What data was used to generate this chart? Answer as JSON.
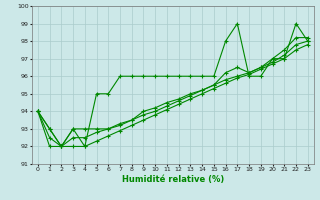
{
  "xlabel": "Humidité relative (%)",
  "background_color": "#cce8e8",
  "grid_color": "#aacccc",
  "line_color": "#008800",
  "xlim": [
    -0.5,
    23.5
  ],
  "ylim": [
    91,
    100
  ],
  "xticks": [
    0,
    1,
    2,
    3,
    4,
    5,
    6,
    7,
    8,
    9,
    10,
    11,
    12,
    13,
    14,
    15,
    16,
    17,
    18,
    19,
    20,
    21,
    22,
    23
  ],
  "yticks": [
    91,
    92,
    93,
    94,
    95,
    96,
    97,
    98,
    99,
    100
  ],
  "series1": [
    94,
    93,
    92,
    93,
    92,
    95,
    95,
    96,
    96,
    96,
    96,
    96,
    96,
    96,
    96,
    96,
    98,
    99,
    96,
    96,
    97,
    97,
    99,
    98
  ],
  "series2": [
    94,
    93,
    92,
    93,
    93,
    93,
    93,
    93.3,
    93.5,
    94,
    94.2,
    94.5,
    94.7,
    95,
    95.2,
    95.5,
    96.2,
    96.5,
    96.2,
    96.5,
    97,
    97.5,
    98.2,
    98.2
  ],
  "series3": [
    94,
    92.5,
    92,
    92.5,
    92.5,
    92.8,
    93,
    93.2,
    93.5,
    93.8,
    94,
    94.3,
    94.6,
    94.9,
    95.2,
    95.5,
    95.8,
    96.0,
    96.2,
    96.5,
    96.8,
    97.2,
    97.8,
    98.0
  ],
  "series4": [
    94,
    92,
    92,
    92,
    92,
    92.3,
    92.6,
    92.9,
    93.2,
    93.5,
    93.8,
    94.1,
    94.4,
    94.7,
    95.0,
    95.3,
    95.6,
    95.9,
    96.1,
    96.4,
    96.7,
    97.0,
    97.5,
    97.8
  ]
}
